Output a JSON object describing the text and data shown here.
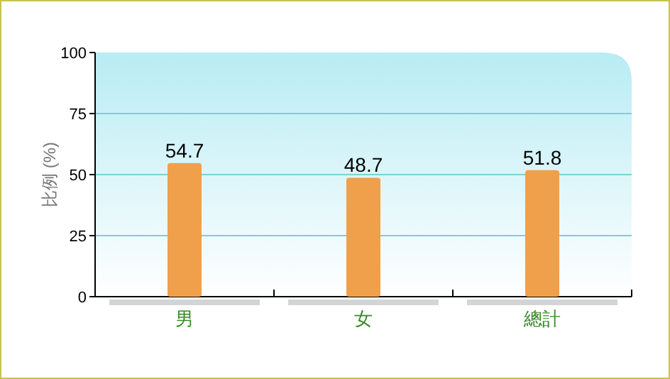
{
  "chart_data": {
    "type": "bar",
    "ylabel": "比例 (%)",
    "categories": [
      "男",
      "女",
      "總計"
    ],
    "values": [
      54.7,
      48.7,
      51.8
    ],
    "color": "#f0a04a",
    "ylim": [
      0,
      100
    ],
    "yticks": [
      0,
      25,
      50,
      75,
      100
    ],
    "grid": "y",
    "data_labels": true
  }
}
